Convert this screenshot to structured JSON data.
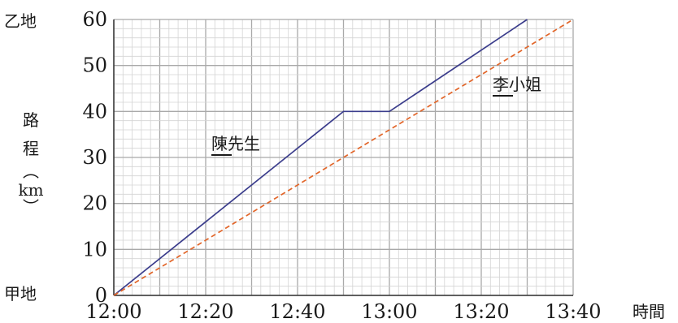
{
  "chart_data": {
    "type": "line",
    "x_ticks": [
      "12:00",
      "12:20",
      "12:40",
      "13:00",
      "13:20",
      "13:40"
    ],
    "y_ticks": [
      "0",
      "10",
      "20",
      "30",
      "40",
      "50",
      "60"
    ],
    "xlim": [
      "12:00",
      "13:40"
    ],
    "ylim": [
      0,
      60
    ],
    "grid": true,
    "xlabel": "時間",
    "ylabel_chars": [
      "路",
      "程",
      "︵",
      "km",
      "︶"
    ],
    "y_top_label": "乙地",
    "y_bottom_label": "甲地",
    "series": [
      {
        "name": "陳先生",
        "color": "#3b3d8c",
        "style": "solid",
        "points": [
          [
            "12:00",
            0
          ],
          [
            "12:50",
            40
          ],
          [
            "13:00",
            40
          ],
          [
            "13:30",
            60
          ]
        ]
      },
      {
        "name": "李小姐",
        "color": "#e2662a",
        "style": "dashed",
        "points": [
          [
            "12:00",
            0
          ],
          [
            "13:40",
            60
          ]
        ]
      }
    ],
    "series_labels": [
      {
        "name_underlined": "陳",
        "name_rest": "先生"
      },
      {
        "name_underlined": "李",
        "name_rest": "小姐"
      }
    ]
  }
}
